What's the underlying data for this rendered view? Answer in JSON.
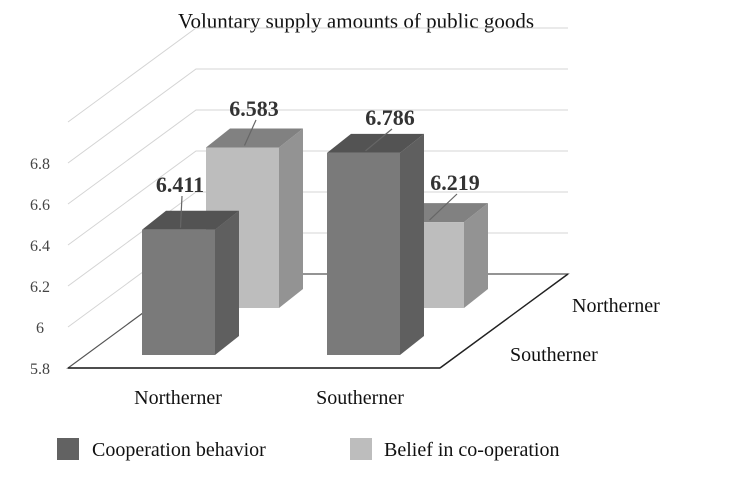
{
  "chart_data": {
    "type": "bar",
    "title": "Voluntary supply amounts of public goods",
    "categories": [
      "Northerner",
      "Southerner"
    ],
    "depth_categories": [
      "Northerner",
      "Southerner"
    ],
    "series": [
      {
        "name": "Cooperation behavior",
        "values": [
          6.411,
          6.786
        ],
        "color": "#7a7a7a"
      },
      {
        "name": "Belief in co-operation",
        "values": [
          6.583,
          6.219
        ],
        "color": "#bdbdbd"
      }
    ],
    "value_labels": [
      "6.411",
      "6.583",
      "6.786",
      "6.219"
    ],
    "yticks": [
      "5.8",
      "6",
      "6.2",
      "6.4",
      "6.6",
      "6.8"
    ],
    "ylim": [
      5.8,
      7.0
    ],
    "grid": true,
    "legend": "bottom",
    "projection": "3d"
  }
}
